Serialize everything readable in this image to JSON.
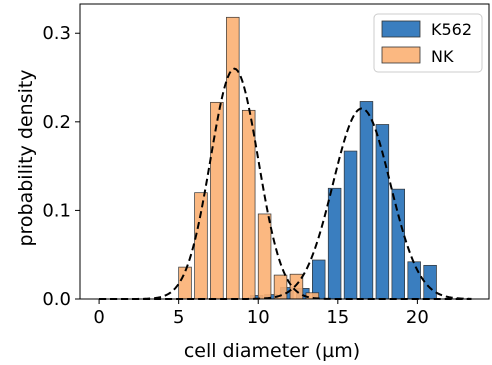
{
  "chart_data": {
    "type": "bar",
    "xlabel": "cell diameter (µm)",
    "ylabel": "probability density",
    "xlim": [
      -1.2,
      24.5
    ],
    "ylim": [
      0,
      0.333
    ],
    "xticks": [
      0,
      5,
      10,
      15,
      20
    ],
    "yticks": [
      0.0,
      0.1,
      0.2,
      0.3
    ],
    "xtick_labels": [
      "0",
      "5",
      "10",
      "15",
      "20"
    ],
    "ytick_labels": [
      "0.0",
      "0.1",
      "0.2",
      "0.3"
    ],
    "bar_width": 0.8,
    "grid": false,
    "legend_position": "top-right",
    "series": [
      {
        "name": "K562",
        "color": "#3a7ebf",
        "x": [
          9.9,
          10.8,
          11.8,
          12.8,
          13.8,
          14.8,
          15.8,
          16.8,
          17.8,
          18.8,
          19.8,
          20.8
        ],
        "values": [
          0.004,
          0.005,
          0.013,
          0.012,
          0.044,
          0.125,
          0.167,
          0.223,
          0.197,
          0.124,
          0.042,
          0.038
        ],
        "fit": {
          "mean": 16.5,
          "sd": 1.8,
          "peak": 0.215
        }
      },
      {
        "name": "NK",
        "color": "#fbb073",
        "x": [
          5.4,
          6.4,
          7.4,
          8.4,
          9.4,
          10.4,
          11.4,
          12.4,
          13.4
        ],
        "values": [
          0.036,
          0.12,
          0.222,
          0.318,
          0.213,
          0.096,
          0.027,
          0.028,
          0.007
        ],
        "fit": {
          "mean": 8.5,
          "sd": 1.5,
          "peak": 0.26
        }
      }
    ]
  }
}
